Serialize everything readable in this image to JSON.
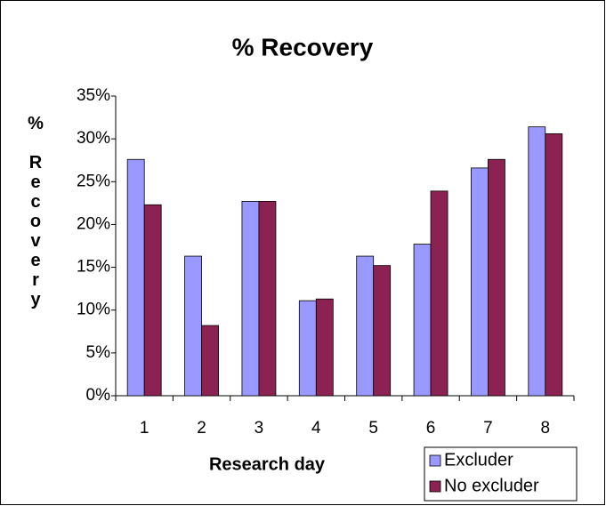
{
  "chart_data": {
    "type": "bar",
    "title": "% Recovery",
    "x_label": "Research day",
    "y_label": "% Recovery",
    "categories": [
      "1",
      "2",
      "3",
      "4",
      "5",
      "6",
      "7",
      "8"
    ],
    "series": [
      {
        "name": "Excluder",
        "color": "#9999ff",
        "values": [
          27.6,
          16.3,
          22.7,
          11.1,
          16.3,
          17.7,
          26.6,
          31.4
        ]
      },
      {
        "name": "No excluder",
        "color": "#8b2252",
        "values": [
          22.3,
          8.2,
          22.7,
          11.3,
          15.2,
          23.9,
          27.6,
          30.6
        ]
      }
    ],
    "ylim": [
      0,
      35
    ],
    "yticks": [
      {
        "value": 0,
        "label": "0%"
      },
      {
        "value": 5,
        "label": "5%"
      },
      {
        "value": 10,
        "label": "10%"
      },
      {
        "value": 15,
        "label": "15%"
      },
      {
        "value": 20,
        "label": "20%"
      },
      {
        "value": 25,
        "label": "25%"
      },
      {
        "value": 30,
        "label": "30%"
      },
      {
        "value": 35,
        "label": "35%"
      }
    ],
    "grid": false,
    "legend": "bottom-right"
  }
}
